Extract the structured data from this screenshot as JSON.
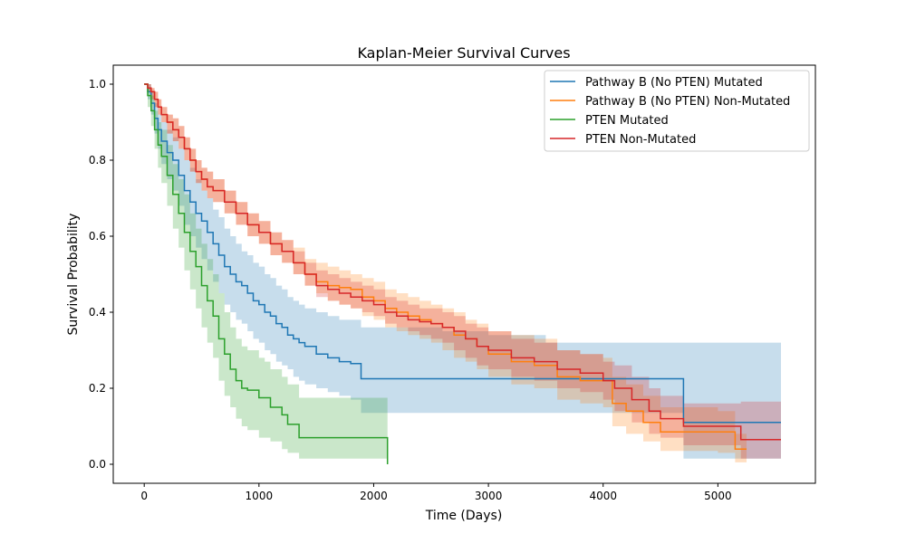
{
  "chart_data": {
    "type": "line",
    "subtype": "kaplan-meier step curves with confidence bands",
    "title": "Kaplan-Meier Survival Curves",
    "xlabel": "Time (Days)",
    "ylabel": "Survival Probability",
    "xlim": [
      -270,
      5850
    ],
    "ylim": [
      -0.05,
      1.05
    ],
    "xticks": [
      0,
      1000,
      2000,
      3000,
      4000,
      5000
    ],
    "xtick_labels": [
      "0",
      "1000",
      "2000",
      "3000",
      "4000",
      "5000"
    ],
    "yticks": [
      0.0,
      0.2,
      0.4,
      0.6,
      0.8,
      1.0
    ],
    "ytick_labels": [
      "0.0",
      "0.2",
      "0.4",
      "0.6",
      "0.8",
      "1.0"
    ],
    "grid": false,
    "legend_position": "upper right",
    "series": [
      {
        "name": "Pathway B (No PTEN) Mutated",
        "color": "#1f77b4",
        "x": [
          0,
          30,
          60,
          90,
          120,
          150,
          200,
          250,
          300,
          350,
          400,
          450,
          500,
          550,
          600,
          650,
          700,
          750,
          800,
          850,
          900,
          950,
          1000,
          1050,
          1100,
          1150,
          1200,
          1250,
          1300,
          1350,
          1400,
          1500,
          1600,
          1700,
          1800,
          1890,
          2200,
          2600,
          3000,
          3500,
          4000,
          4700,
          5550
        ],
        "y": [
          1.0,
          0.98,
          0.95,
          0.91,
          0.88,
          0.85,
          0.82,
          0.8,
          0.76,
          0.72,
          0.69,
          0.66,
          0.64,
          0.61,
          0.58,
          0.55,
          0.52,
          0.5,
          0.48,
          0.47,
          0.45,
          0.43,
          0.42,
          0.4,
          0.39,
          0.37,
          0.36,
          0.34,
          0.33,
          0.32,
          0.31,
          0.29,
          0.28,
          0.27,
          0.265,
          0.225,
          0.225,
          0.225,
          0.225,
          0.225,
          0.225,
          0.11,
          0.11
        ],
        "ci_lower": [
          1.0,
          0.96,
          0.92,
          0.87,
          0.83,
          0.79,
          0.75,
          0.72,
          0.68,
          0.63,
          0.6,
          0.57,
          0.54,
          0.51,
          0.48,
          0.45,
          0.42,
          0.4,
          0.38,
          0.37,
          0.35,
          0.33,
          0.32,
          0.3,
          0.29,
          0.27,
          0.26,
          0.25,
          0.23,
          0.22,
          0.21,
          0.2,
          0.19,
          0.18,
          0.17,
          0.135,
          0.135,
          0.135,
          0.135,
          0.135,
          0.135,
          0.015,
          0.015
        ],
        "ci_upper": [
          1.0,
          1.0,
          0.98,
          0.95,
          0.92,
          0.9,
          0.88,
          0.86,
          0.83,
          0.8,
          0.78,
          0.75,
          0.72,
          0.7,
          0.67,
          0.65,
          0.62,
          0.6,
          0.58,
          0.56,
          0.55,
          0.53,
          0.52,
          0.5,
          0.49,
          0.47,
          0.46,
          0.44,
          0.43,
          0.42,
          0.41,
          0.4,
          0.39,
          0.38,
          0.38,
          0.36,
          0.36,
          0.35,
          0.34,
          0.32,
          0.32,
          0.32,
          0.32
        ]
      },
      {
        "name": "Pathway B (No PTEN) Non-Mutated",
        "color": "#ff7f0e",
        "x": [
          0,
          30,
          60,
          90,
          120,
          150,
          200,
          250,
          300,
          350,
          400,
          450,
          500,
          550,
          600,
          700,
          800,
          900,
          1000,
          1100,
          1200,
          1300,
          1400,
          1500,
          1600,
          1700,
          1800,
          1900,
          2000,
          2100,
          2200,
          2300,
          2400,
          2500,
          2600,
          2700,
          2800,
          2900,
          3000,
          3200,
          3400,
          3600,
          3800,
          4000,
          4080,
          4200,
          4350,
          4500,
          5000,
          5150,
          5250
        ],
        "y": [
          1.0,
          0.99,
          0.98,
          0.96,
          0.94,
          0.92,
          0.9,
          0.88,
          0.86,
          0.83,
          0.8,
          0.77,
          0.75,
          0.73,
          0.72,
          0.69,
          0.66,
          0.63,
          0.61,
          0.58,
          0.56,
          0.53,
          0.5,
          0.48,
          0.47,
          0.465,
          0.46,
          0.44,
          0.43,
          0.41,
          0.4,
          0.39,
          0.38,
          0.37,
          0.36,
          0.34,
          0.33,
          0.31,
          0.29,
          0.27,
          0.26,
          0.23,
          0.22,
          0.22,
          0.16,
          0.14,
          0.11,
          0.085,
          0.085,
          0.04,
          0.04
        ],
        "ci_lower": [
          1.0,
          0.98,
          0.96,
          0.94,
          0.92,
          0.9,
          0.87,
          0.85,
          0.83,
          0.8,
          0.77,
          0.74,
          0.72,
          0.7,
          0.69,
          0.66,
          0.63,
          0.6,
          0.58,
          0.55,
          0.53,
          0.5,
          0.47,
          0.45,
          0.43,
          0.42,
          0.41,
          0.39,
          0.38,
          0.36,
          0.35,
          0.34,
          0.33,
          0.32,
          0.3,
          0.28,
          0.27,
          0.25,
          0.23,
          0.21,
          0.2,
          0.17,
          0.16,
          0.15,
          0.1,
          0.08,
          0.06,
          0.035,
          0.03,
          0.005,
          0.005
        ],
        "ci_upper": [
          1.0,
          1.0,
          0.99,
          0.98,
          0.96,
          0.94,
          0.92,
          0.91,
          0.89,
          0.86,
          0.83,
          0.8,
          0.78,
          0.77,
          0.75,
          0.72,
          0.69,
          0.66,
          0.64,
          0.61,
          0.59,
          0.57,
          0.54,
          0.53,
          0.52,
          0.51,
          0.5,
          0.49,
          0.48,
          0.46,
          0.45,
          0.44,
          0.43,
          0.42,
          0.41,
          0.4,
          0.38,
          0.37,
          0.35,
          0.34,
          0.33,
          0.3,
          0.29,
          0.28,
          0.23,
          0.21,
          0.18,
          0.15,
          0.14,
          0.08,
          0.08
        ]
      },
      {
        "name": "PTEN Mutated",
        "color": "#2ca02c",
        "x": [
          0,
          30,
          60,
          90,
          120,
          150,
          200,
          250,
          300,
          350,
          400,
          450,
          500,
          550,
          600,
          650,
          700,
          750,
          800,
          850,
          900,
          1000,
          1050,
          1100,
          1200,
          1250,
          1350,
          1500,
          2120
        ],
        "y": [
          1.0,
          0.97,
          0.93,
          0.88,
          0.84,
          0.81,
          0.76,
          0.71,
          0.66,
          0.61,
          0.56,
          0.52,
          0.47,
          0.43,
          0.39,
          0.33,
          0.29,
          0.25,
          0.22,
          0.2,
          0.195,
          0.175,
          0.175,
          0.15,
          0.13,
          0.105,
          0.07,
          0.07,
          0.0
        ],
        "ci_lower": [
          1.0,
          0.94,
          0.89,
          0.83,
          0.78,
          0.74,
          0.68,
          0.62,
          0.57,
          0.51,
          0.46,
          0.41,
          0.36,
          0.32,
          0.28,
          0.22,
          0.18,
          0.15,
          0.12,
          0.1,
          0.09,
          0.07,
          0.07,
          0.06,
          0.04,
          0.03,
          0.015,
          0.015,
          0.015
        ],
        "ci_upper": [
          1.0,
          0.99,
          0.97,
          0.93,
          0.9,
          0.88,
          0.84,
          0.79,
          0.75,
          0.71,
          0.66,
          0.62,
          0.58,
          0.54,
          0.5,
          0.45,
          0.4,
          0.36,
          0.33,
          0.31,
          0.3,
          0.28,
          0.27,
          0.25,
          0.23,
          0.21,
          0.175,
          0.175,
          0.175
        ]
      },
      {
        "name": "PTEN Non-Mutated",
        "color": "#d62728",
        "x": [
          0,
          30,
          60,
          90,
          120,
          150,
          200,
          250,
          300,
          350,
          400,
          450,
          500,
          550,
          600,
          700,
          800,
          900,
          1000,
          1100,
          1200,
          1300,
          1400,
          1500,
          1600,
          1700,
          1800,
          1900,
          2000,
          2100,
          2200,
          2300,
          2400,
          2500,
          2600,
          2700,
          2800,
          2900,
          3000,
          3200,
          3400,
          3600,
          3800,
          4000,
          4100,
          4250,
          4400,
          4500,
          4700,
          5200,
          5550
        ],
        "y": [
          1.0,
          0.99,
          0.98,
          0.96,
          0.94,
          0.92,
          0.9,
          0.88,
          0.86,
          0.83,
          0.8,
          0.77,
          0.75,
          0.73,
          0.72,
          0.69,
          0.66,
          0.63,
          0.61,
          0.58,
          0.56,
          0.53,
          0.5,
          0.47,
          0.46,
          0.45,
          0.44,
          0.43,
          0.42,
          0.4,
          0.39,
          0.38,
          0.375,
          0.37,
          0.36,
          0.35,
          0.33,
          0.31,
          0.3,
          0.28,
          0.27,
          0.25,
          0.24,
          0.22,
          0.2,
          0.17,
          0.14,
          0.12,
          0.1,
          0.065,
          0.065
        ],
        "ci_lower": [
          1.0,
          0.98,
          0.96,
          0.94,
          0.92,
          0.9,
          0.87,
          0.85,
          0.83,
          0.8,
          0.77,
          0.74,
          0.72,
          0.7,
          0.69,
          0.66,
          0.63,
          0.6,
          0.58,
          0.55,
          0.53,
          0.5,
          0.47,
          0.44,
          0.43,
          0.42,
          0.41,
          0.4,
          0.39,
          0.37,
          0.36,
          0.35,
          0.34,
          0.33,
          0.32,
          0.3,
          0.28,
          0.26,
          0.25,
          0.23,
          0.22,
          0.2,
          0.19,
          0.17,
          0.14,
          0.11,
          0.08,
          0.07,
          0.05,
          0.015,
          0.015
        ],
        "ci_upper": [
          1.0,
          1.0,
          0.99,
          0.98,
          0.96,
          0.94,
          0.92,
          0.91,
          0.89,
          0.86,
          0.83,
          0.8,
          0.78,
          0.77,
          0.75,
          0.72,
          0.69,
          0.66,
          0.64,
          0.61,
          0.59,
          0.56,
          0.53,
          0.51,
          0.5,
          0.49,
          0.48,
          0.47,
          0.46,
          0.44,
          0.43,
          0.42,
          0.41,
          0.41,
          0.4,
          0.39,
          0.37,
          0.36,
          0.35,
          0.33,
          0.32,
          0.3,
          0.29,
          0.27,
          0.26,
          0.23,
          0.2,
          0.18,
          0.16,
          0.165,
          0.165
        ]
      }
    ]
  }
}
